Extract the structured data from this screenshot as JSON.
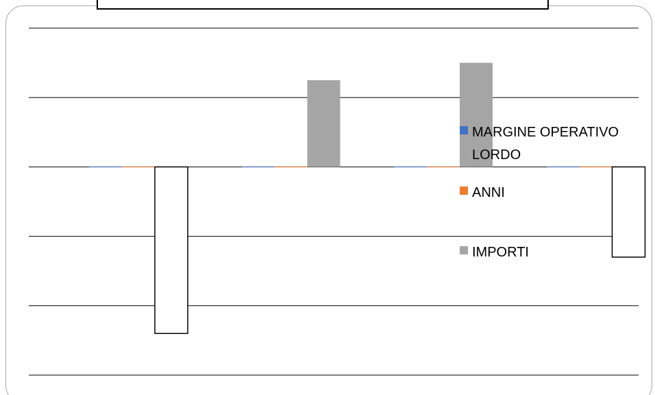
{
  "chart_data": {
    "type": "bar",
    "categories": [
      "",
      "",
      "",
      ""
    ],
    "series": [
      {
        "name": "MARGINE OPERATIVO LORDO",
        "color": "#4472c4",
        "values": [
          0,
          0,
          0,
          0
        ]
      },
      {
        "name": "ANNI",
        "color": "#ed7d31",
        "values": [
          0,
          0,
          0,
          0
        ]
      },
      {
        "name": "IMPORTI",
        "color": "#a5a5a5",
        "values": [
          -2.4,
          1.25,
          1.5,
          -1.3
        ]
      }
    ],
    "negative_fill": "#ffffff",
    "ylim": [
      -3,
      2
    ],
    "grid": true,
    "legend": {
      "position": "right",
      "items": [
        {
          "lines": [
            "MARGINE OPERATIVO",
            "LORDO"
          ],
          "color": "#4472c4"
        },
        {
          "lines": [
            "ANNI"
          ],
          "color": "#ed7d31"
        },
        {
          "lines": [
            "IMPORTI"
          ],
          "color": "#a5a5a5"
        }
      ]
    }
  }
}
